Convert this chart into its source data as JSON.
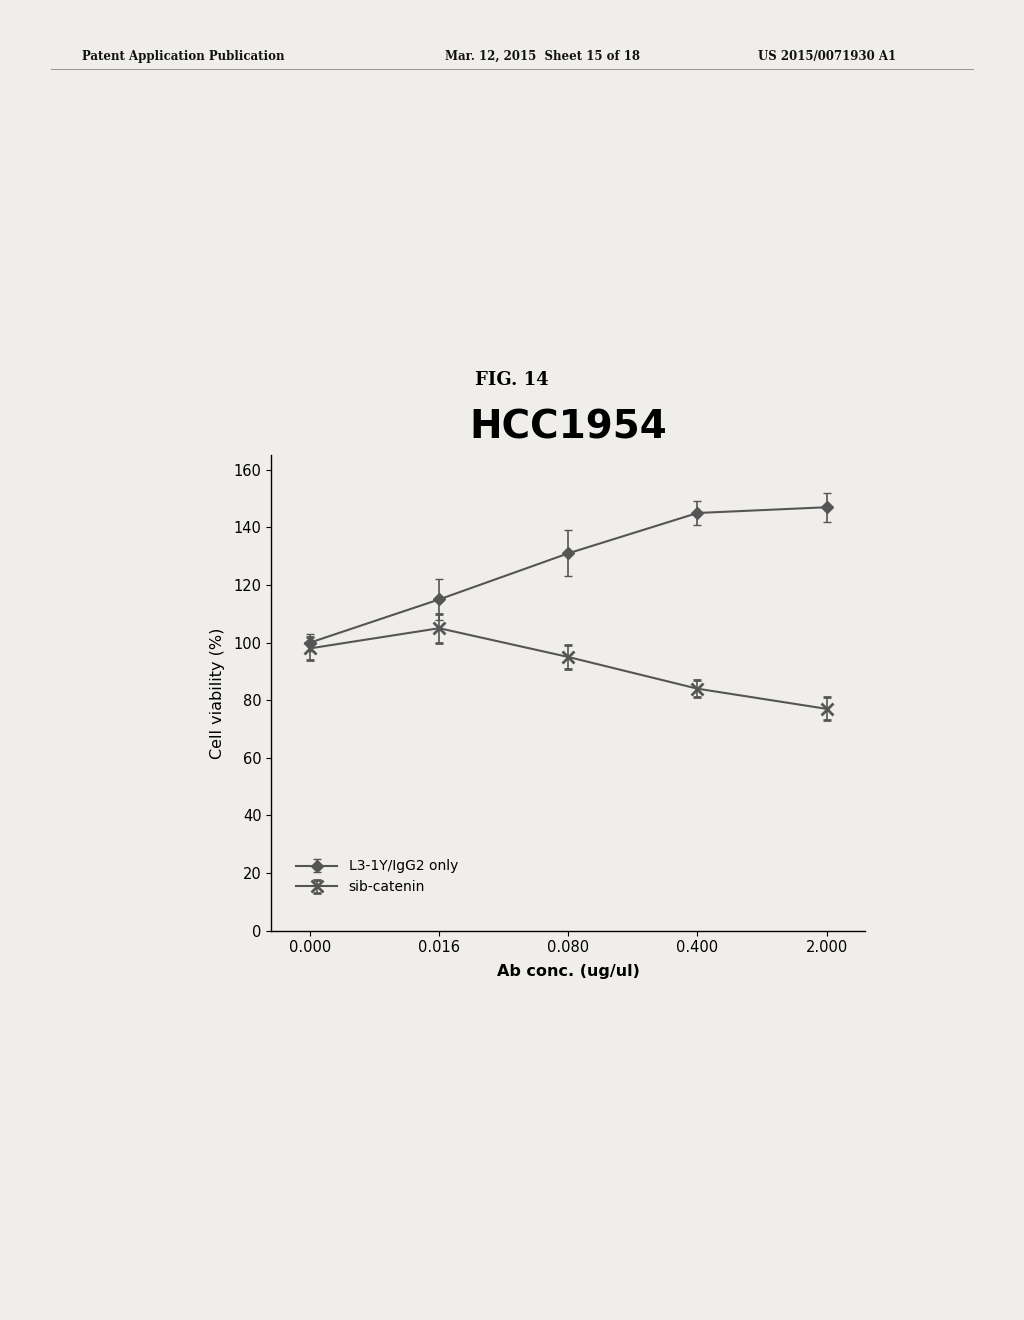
{
  "fig_label": "FIG. 14",
  "chart_title": "HCC1954",
  "xlabel": "Ab conc. (ug/ul)",
  "ylabel": "Cell viability (%)",
  "x_labels": [
    "0.000",
    "0.016",
    "0.080",
    "0.400",
    "2.000"
  ],
  "x_values": [
    0,
    1,
    2,
    3,
    4
  ],
  "series1_name": "L3-1Y/IgG2 only",
  "series1_y": [
    100,
    115,
    131,
    145,
    147
  ],
  "series1_yerr": [
    3,
    7,
    8,
    4,
    5
  ],
  "series2_name": "sib-catenin",
  "series2_y": [
    98,
    105,
    95,
    84,
    77
  ],
  "series2_yerr": [
    4,
    5,
    4,
    3,
    4
  ],
  "ylim": [
    0,
    165
  ],
  "yticks": [
    0,
    20,
    40,
    60,
    80,
    100,
    120,
    140,
    160
  ],
  "line_color": "#555555",
  "background_color": "#f0eeeb",
  "page_color": "#f0eeeb",
  "header_left": "Patent Application Publication",
  "header_mid": "Mar. 12, 2015  Sheet 15 of 18",
  "header_right": "US 2015/0071930 A1"
}
